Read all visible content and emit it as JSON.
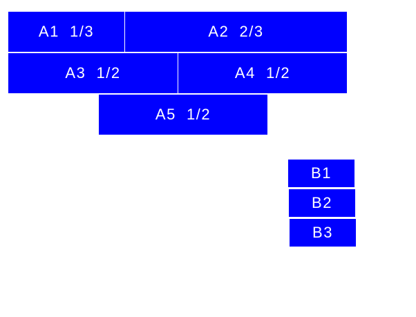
{
  "colors": {
    "box_fill": "#0000ff",
    "text": "#ffffff",
    "background": "#ffffff"
  },
  "group_a": [
    {
      "label": "A1  1/3"
    },
    {
      "label": "A2  2/3"
    },
    {
      "label": "A3  1/2"
    },
    {
      "label": "A4  1/2"
    },
    {
      "label": "A5  1/2"
    }
  ],
  "group_b": [
    {
      "label": "B1"
    },
    {
      "label": "B2"
    },
    {
      "label": "B3"
    }
  ]
}
